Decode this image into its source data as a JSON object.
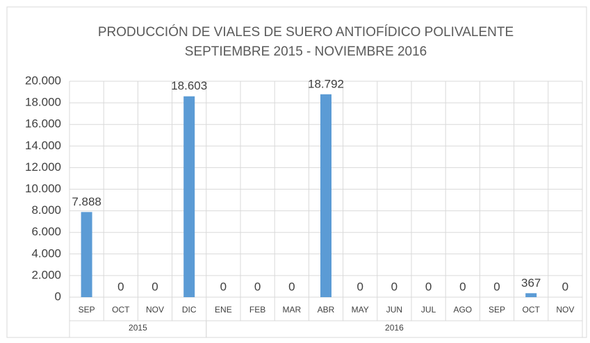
{
  "chart_data": {
    "type": "bar",
    "title": "PRODUCCIÓN DE VIALES DE SUERO ANTIOFÍDICO POLIVALENTE",
    "subtitle": "SEPTIEMBRE 2015 - NOVIEMBRE 2016",
    "category_groups": [
      {
        "label": "2015",
        "categories": [
          "SEP",
          "OCT",
          "NOV",
          "DIC"
        ]
      },
      {
        "label": "2016",
        "categories": [
          "ENE",
          "FEB",
          "MAR",
          "ABR",
          "MAY",
          "JUN",
          "JUL",
          "AGO",
          "SEP",
          "OCT",
          "NOV"
        ]
      }
    ],
    "values": [
      7888,
      0,
      0,
      18603,
      0,
      0,
      0,
      18792,
      0,
      0,
      0,
      0,
      0,
      367,
      0
    ],
    "value_labels": [
      "7.888",
      "0",
      "0",
      "18.603",
      "0",
      "0",
      "0",
      "18.792",
      "0",
      "0",
      "0",
      "0",
      "0",
      "367",
      "0"
    ],
    "color": "#5b9bd5",
    "ylim": [
      0,
      20000
    ],
    "yticks": [
      0,
      {
        "value": 2000,
        "label": "2.000"
      },
      {
        "value": 4000,
        "label": "4.000"
      },
      {
        "value": 6000,
        "label": "6.000"
      },
      {
        "value": 8000,
        "label": "8.000"
      },
      {
        "value": 10000,
        "label": "10.000"
      },
      {
        "value": 12000,
        "label": "12.000"
      },
      {
        "value": 14000,
        "label": "14.000"
      },
      {
        "value": 16000,
        "label": "16.000"
      },
      {
        "value": 18000,
        "label": "18.000"
      },
      {
        "value": 20000,
        "label": "20.000"
      }
    ],
    "grid": true
  }
}
